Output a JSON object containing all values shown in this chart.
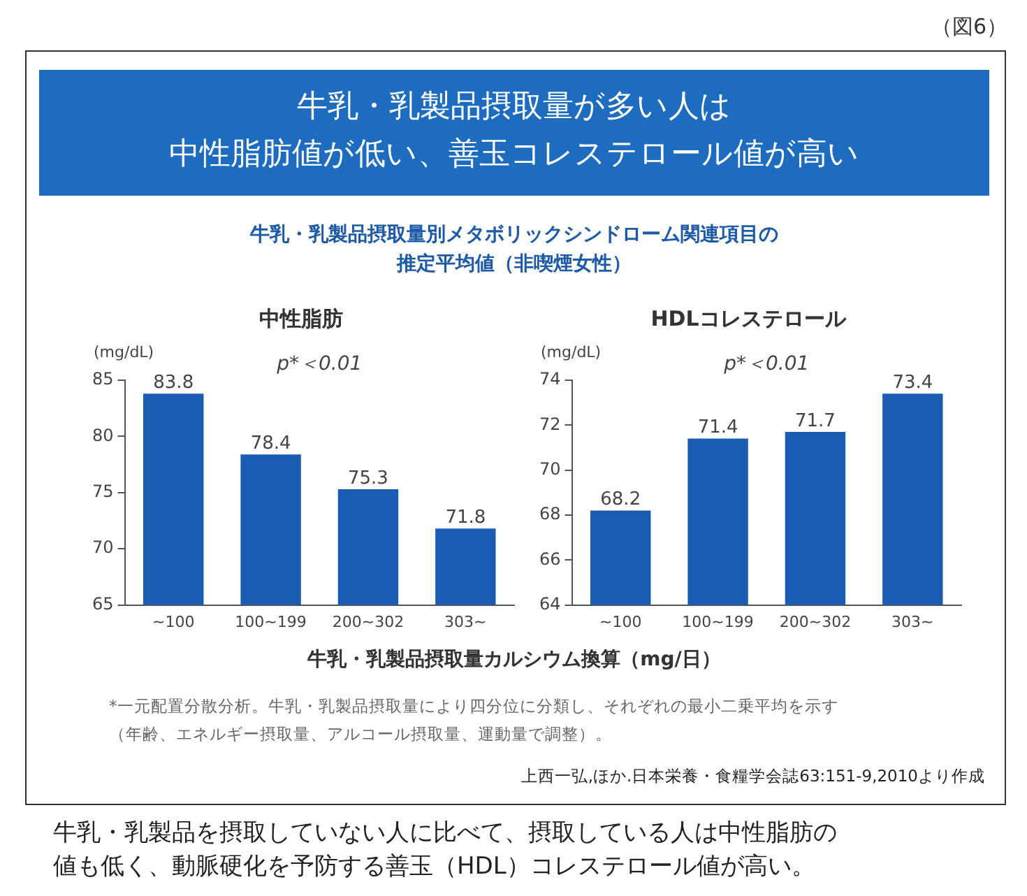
{
  "chart_data": [
    {
      "type": "bar",
      "title": "中性脂肪",
      "ylabel": "(mg/dL)",
      "xlabel": "牛乳・乳製品摂取量カルシウム換算（mg/日）",
      "categories": [
        "~100",
        "100~199",
        "200~302",
        "303~"
      ],
      "values": [
        83.8,
        78.4,
        75.3,
        71.8
      ],
      "color": "#1a5cb4",
      "ylim": [
        65,
        85
      ],
      "yticks": [
        65,
        70,
        75,
        80,
        85
      ],
      "grid": false,
      "data_labels": true,
      "legend": false,
      "annotations": [
        "p*＜0.01",
        "（図6）",
        "牛乳・乳製品摂取量が多い人は",
        "中性脂肪値が低い、善玉コレステロール値が高い",
        "牛乳・乳製品摂取量別メタボリックシンドローム関連項目の",
        "推定平均値（非喫煙女性）",
        "*一元配置分散分析。牛乳・乳製品摂取量により四分位に分類し、それぞれの最小二乗平均を示す",
        "（年齢、エネルギー摂取量、アルコール摂取量、運動量で調整）。",
        "上西一弘,ほか.日本栄養・食糧学会誌63:151-9,2010より作成",
        "牛乳・乳製品を摂取していない人に比べて、摂取している人は中性脂肪の",
        "値も低く、動脈硬化を予防する善玉（HDL）コレステロール値が高い。"
      ]
    },
    {
      "type": "bar",
      "title": "HDLコレステロール",
      "ylabel": "(mg/dL)",
      "categories": [
        "~100",
        "100~199",
        "200~302",
        "303~"
      ],
      "values": [
        68.2,
        71.4,
        71.7,
        73.4
      ],
      "color": "#1a5cb4",
      "ylim": [
        64,
        74
      ],
      "yticks": [
        64,
        66,
        68,
        70,
        72,
        74
      ],
      "grid": false,
      "data_labels": true,
      "legend": false,
      "annotations": [
        "p*＜0.01"
      ]
    }
  ]
}
